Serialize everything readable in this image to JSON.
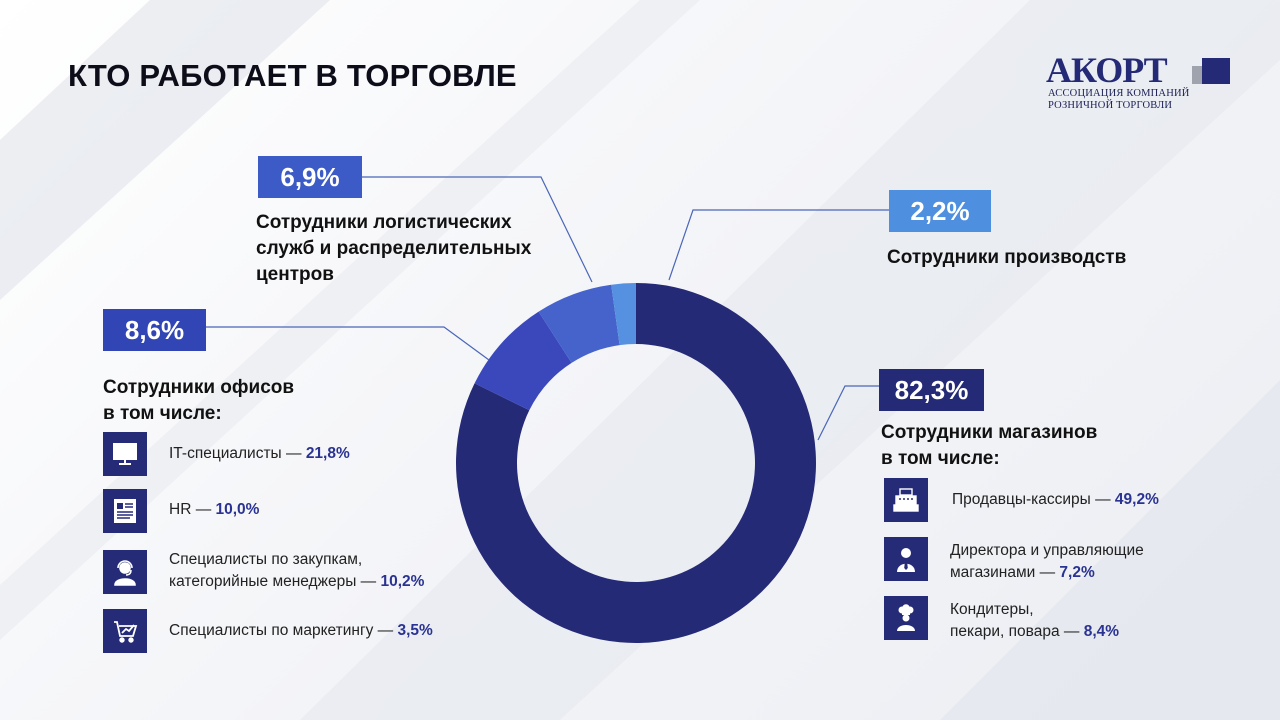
{
  "title": "КТО РАБОТАЕТ В ТОРГОВЛЕ",
  "logo": {
    "name": "АКОРТ",
    "line1": "АССОЦИАЦИЯ КОМПАНИЙ",
    "line2": "РОЗНИЧНОЙ ТОРГОВЛИ"
  },
  "colors": {
    "stores": "#242a76",
    "office": "#3a48bc",
    "logistics": "#4563ca",
    "production": "#5591e0"
  },
  "chart_data": {
    "type": "pie",
    "donut": true,
    "unit": "%",
    "slices": [
      {
        "key": "stores",
        "label": "Сотрудники магазинов",
        "value": 82.3,
        "display": "82,3%"
      },
      {
        "key": "office",
        "label": "Сотрудники офисов",
        "value": 8.6,
        "display": "8,6%"
      },
      {
        "key": "logistics",
        "label": "Сотрудники логистических служб и распределительных центров",
        "value": 6.9,
        "display": "6,9%"
      },
      {
        "key": "production",
        "label": "Сотрудники производств",
        "value": 2.2,
        "display": "2,2%"
      }
    ]
  },
  "labels": {
    "logistics": {
      "line1": "Сотрудники логистических",
      "line2": "служб и распределительных",
      "line3": "центров"
    },
    "production": {
      "line1": "Сотрудники производств"
    },
    "office": {
      "line1": "Сотрудники офисов",
      "line2": "в том числе:"
    },
    "stores": {
      "line1": "Сотрудники магазинов",
      "line2": "в том числе:"
    }
  },
  "office_items": [
    {
      "icon": "monitor-icon",
      "text": "IT-специалисты — ",
      "value": "21,8%"
    },
    {
      "icon": "document-icon",
      "text": "HR — ",
      "value": "10,0%"
    },
    {
      "icon": "headset-person-icon",
      "text": "Специалисты по закупкам,",
      "text2": "категорийные менеджеры — ",
      "value": "10,2%"
    },
    {
      "icon": "chart-trend-icon",
      "text": "Специалисты по маркетингу — ",
      "value": "3,5%"
    }
  ],
  "store_items": [
    {
      "icon": "cash-register-icon",
      "text": "Продавцы-кассиры — ",
      "value": "49,2%"
    },
    {
      "icon": "manager-person-icon",
      "text": "Директора и управляющие",
      "text2": "магазинами — ",
      "value": "7,2%"
    },
    {
      "icon": "chef-icon",
      "text": "Кондитеры,",
      "text2": "пекари, повара — ",
      "value": "8,4%"
    }
  ]
}
